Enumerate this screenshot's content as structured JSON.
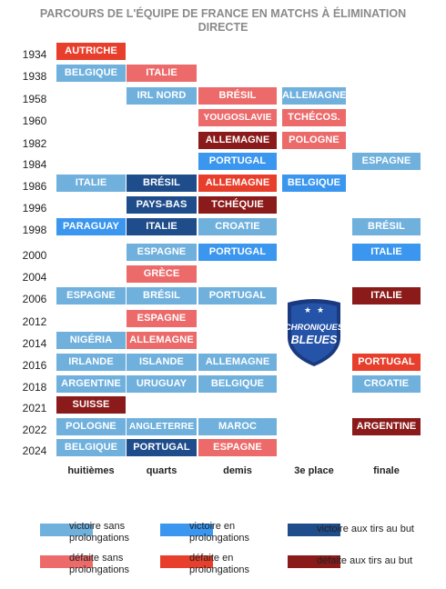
{
  "title_lines": [
    "PARCOURS DE L'ÉQUIPE DE FRANCE EN MATCHS À ÉLIMINATION",
    "DIRECTE"
  ],
  "colors": {
    "win_regular": "#6fb0dd",
    "win_extra": "#3a96ee",
    "win_penalties": "#1f4d8b",
    "loss_regular": "#ec6a6a",
    "loss_extra": "#e83f2c",
    "loss_penalties": "#8b1a1a",
    "badge_dark": "#1a3a80",
    "badge_text": "#ffffff"
  },
  "badge": {
    "line1": "CHRONIQUES",
    "line2": "BLEUES",
    "label": "Chroniques Bleues logo"
  },
  "chart_data": {
    "type": "table",
    "columns": [
      "huitièmes",
      "quarts",
      "demis",
      "3e place",
      "finale"
    ],
    "rows": [
      {
        "year": "1934",
        "cells": [
          {
            "col": 0,
            "team": "AUTRICHE",
            "result": "loss_extra"
          }
        ]
      },
      {
        "year": "1938",
        "cells": [
          {
            "col": 0,
            "team": "BELGIQUE",
            "result": "win_regular"
          },
          {
            "col": 1,
            "team": "ITALIE",
            "result": "loss_regular"
          }
        ]
      },
      {
        "year": "1958",
        "cells": [
          {
            "col": 1,
            "team": "IRL NORD",
            "result": "win_regular"
          },
          {
            "col": 2,
            "team": "BRÉSIL",
            "result": "loss_regular"
          },
          {
            "col": 3,
            "team": "ALLEMAGNE",
            "result": "win_regular"
          }
        ]
      },
      {
        "year": "1960",
        "cells": [
          {
            "col": 2,
            "team": "YOUGOSLAVIE",
            "result": "loss_regular"
          },
          {
            "col": 3,
            "team": "TCHÉCOS.",
            "result": "loss_regular"
          }
        ]
      },
      {
        "year": "1982",
        "cells": [
          {
            "col": 2,
            "team": "ALLEMAGNE",
            "result": "loss_penalties"
          },
          {
            "col": 3,
            "team": "POLOGNE",
            "result": "loss_regular"
          }
        ]
      },
      {
        "year": "1984",
        "cells": [
          {
            "col": 2,
            "team": "PORTUGAL",
            "result": "win_extra"
          },
          {
            "col": 4,
            "team": "ESPAGNE",
            "result": "win_regular"
          }
        ]
      },
      {
        "year": "1986",
        "cells": [
          {
            "col": 0,
            "team": "ITALIE",
            "result": "win_regular"
          },
          {
            "col": 1,
            "team": "BRÉSIL",
            "result": "win_penalties"
          },
          {
            "col": 2,
            "team": "ALLEMAGNE",
            "result": "loss_extra"
          },
          {
            "col": 3,
            "team": "BELGIQUE",
            "result": "win_extra"
          }
        ]
      },
      {
        "year": "1996",
        "cells": [
          {
            "col": 1,
            "team": "PAYS-BAS",
            "result": "win_penalties"
          },
          {
            "col": 2,
            "team": "TCHÉQUIE",
            "result": "loss_penalties"
          }
        ]
      },
      {
        "year": "1998",
        "cells": [
          {
            "col": 0,
            "team": "PARAGUAY",
            "result": "win_extra"
          },
          {
            "col": 1,
            "team": "ITALIE",
            "result": "win_penalties"
          },
          {
            "col": 2,
            "team": "CROATIE",
            "result": "win_regular"
          },
          {
            "col": 4,
            "team": "BRÉSIL",
            "result": "win_regular"
          }
        ]
      },
      {
        "year": "2000",
        "cells": [
          {
            "col": 1,
            "team": "ESPAGNE",
            "result": "win_regular"
          },
          {
            "col": 2,
            "team": "PORTUGAL",
            "result": "win_extra"
          },
          {
            "col": 4,
            "team": "ITALIE",
            "result": "win_extra"
          }
        ]
      },
      {
        "year": "2004",
        "cells": [
          {
            "col": 1,
            "team": "GRÈCE",
            "result": "loss_regular"
          }
        ]
      },
      {
        "year": "2006",
        "cells": [
          {
            "col": 0,
            "team": "ESPAGNE",
            "result": "win_regular"
          },
          {
            "col": 1,
            "team": "BRÉSIL",
            "result": "win_regular"
          },
          {
            "col": 2,
            "team": "PORTUGAL",
            "result": "win_regular"
          },
          {
            "col": 4,
            "team": "ITALIE",
            "result": "loss_penalties"
          }
        ]
      },
      {
        "year": "2012",
        "cells": [
          {
            "col": 1,
            "team": "ESPAGNE",
            "result": "loss_regular"
          }
        ]
      },
      {
        "year": "2014",
        "cells": [
          {
            "col": 0,
            "team": "NIGÉRIA",
            "result": "win_regular"
          },
          {
            "col": 1,
            "team": "ALLEMAGNE",
            "result": "loss_regular"
          }
        ]
      },
      {
        "year": "2016",
        "cells": [
          {
            "col": 0,
            "team": "IRLANDE",
            "result": "win_regular"
          },
          {
            "col": 1,
            "team": "ISLANDE",
            "result": "win_regular"
          },
          {
            "col": 2,
            "team": "ALLEMAGNE",
            "result": "win_regular"
          },
          {
            "col": 4,
            "team": "PORTUGAL",
            "result": "loss_extra"
          }
        ]
      },
      {
        "year": "2018",
        "cells": [
          {
            "col": 0,
            "team": "ARGENTINE",
            "result": "win_regular"
          },
          {
            "col": 1,
            "team": "URUGUAY",
            "result": "win_regular"
          },
          {
            "col": 2,
            "team": "BELGIQUE",
            "result": "win_regular"
          },
          {
            "col": 4,
            "team": "CROATIE",
            "result": "win_regular"
          }
        ]
      },
      {
        "year": "2021",
        "cells": [
          {
            "col": 0,
            "team": "SUISSE",
            "result": "loss_penalties"
          }
        ]
      },
      {
        "year": "2022",
        "cells": [
          {
            "col": 0,
            "team": "POLOGNE",
            "result": "win_regular"
          },
          {
            "col": 1,
            "team": "ANGLETERRE",
            "result": "win_regular"
          },
          {
            "col": 2,
            "team": "MAROC",
            "result": "win_regular"
          },
          {
            "col": 4,
            "team": "ARGENTINE",
            "result": "loss_penalties"
          }
        ]
      },
      {
        "year": "2024",
        "cells": [
          {
            "col": 0,
            "team": "BELGIQUE",
            "result": "win_regular"
          },
          {
            "col": 1,
            "team": "PORTUGAL",
            "result": "win_penalties"
          },
          {
            "col": 2,
            "team": "ESPAGNE",
            "result": "loss_regular"
          }
        ]
      }
    ]
  },
  "legend": [
    {
      "key": "win_regular",
      "text": "victoire sans prolongations"
    },
    {
      "key": "win_extra",
      "text": "victoire en prolongations"
    },
    {
      "key": "win_penalties",
      "text": "victoire aux tirs au but"
    },
    {
      "key": "loss_regular",
      "text": "défaite sans prolongations"
    },
    {
      "key": "loss_extra",
      "text": "défaite en prolongations"
    },
    {
      "key": "loss_penalties",
      "text": "défaite aux tirs au but"
    }
  ]
}
